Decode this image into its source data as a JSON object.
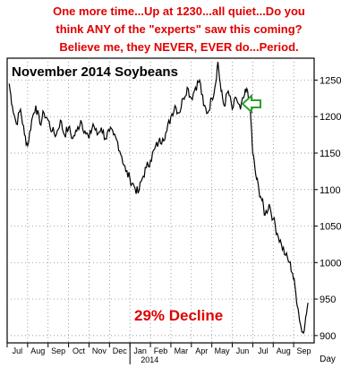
{
  "header": {
    "lines": [
      "One more time...Up at 1230...all quiet...Do you",
      "think ANY of the \"experts\" saw this coming?",
      "Believe me, they NEVER, EVER do...Period."
    ]
  },
  "colors": {
    "header_text": "#e00000",
    "price_line": "#000000",
    "arrow": "#2e9e2e",
    "decline_text": "#e00000",
    "grid": "#7a7a7a"
  },
  "chart_data": {
    "type": "line",
    "title": "November 2014 Soybeans",
    "annotation": "29% Decline",
    "arrow_icon": "left-arrow-icon",
    "ylim": [
      890,
      1280
    ],
    "yticks": [
      900,
      950,
      1000,
      1050,
      1100,
      1150,
      1200,
      1250
    ],
    "ylabel": "",
    "x_unit_label": "Day",
    "year_label": "2014",
    "months": [
      "Jul",
      "Aug",
      "Sep",
      "Oct",
      "Nov",
      "Dec",
      "Jan",
      "Feb",
      "Mar",
      "Apr",
      "May",
      "Jun",
      "Jul",
      "Aug",
      "Sep"
    ],
    "xlim": [
      0,
      15
    ],
    "grid": true,
    "series": [
      {
        "values": [
          [
            0.1,
            1245
          ],
          [
            0.25,
            1215
          ],
          [
            0.45,
            1190
          ],
          [
            0.65,
            1210
          ],
          [
            0.85,
            1175
          ],
          [
            1.0,
            1160
          ],
          [
            1.2,
            1195
          ],
          [
            1.4,
            1215
          ],
          [
            1.6,
            1190
          ],
          [
            1.8,
            1205
          ],
          [
            2.0,
            1195
          ],
          [
            2.2,
            1180
          ],
          [
            2.4,
            1175
          ],
          [
            2.6,
            1195
          ],
          [
            2.8,
            1175
          ],
          [
            3.0,
            1185
          ],
          [
            3.2,
            1170
          ],
          [
            3.4,
            1180
          ],
          [
            3.6,
            1195
          ],
          [
            3.8,
            1180
          ],
          [
            4.0,
            1170
          ],
          [
            4.2,
            1190
          ],
          [
            4.4,
            1175
          ],
          [
            4.6,
            1185
          ],
          [
            4.8,
            1170
          ],
          [
            5.0,
            1180
          ],
          [
            5.2,
            1175
          ],
          [
            5.4,
            1165
          ],
          [
            5.6,
            1145
          ],
          [
            5.8,
            1125
          ],
          [
            6.0,
            1115
          ],
          [
            6.2,
            1105
          ],
          [
            6.4,
            1095
          ],
          [
            6.6,
            1115
          ],
          [
            6.8,
            1130
          ],
          [
            7.0,
            1140
          ],
          [
            7.2,
            1155
          ],
          [
            7.4,
            1165
          ],
          [
            7.6,
            1170
          ],
          [
            7.8,
            1180
          ],
          [
            8.0,
            1200
          ],
          [
            8.2,
            1215
          ],
          [
            8.4,
            1205
          ],
          [
            8.6,
            1225
          ],
          [
            8.8,
            1240
          ],
          [
            9.0,
            1225
          ],
          [
            9.2,
            1240
          ],
          [
            9.4,
            1250
          ],
          [
            9.6,
            1215
          ],
          [
            9.8,
            1205
          ],
          [
            10.0,
            1225
          ],
          [
            10.15,
            1240
          ],
          [
            10.3,
            1275
          ],
          [
            10.45,
            1235
          ],
          [
            10.6,
            1215
          ],
          [
            10.8,
            1235
          ],
          [
            11.0,
            1210
          ],
          [
            11.2,
            1225
          ],
          [
            11.4,
            1210
          ],
          [
            11.6,
            1230
          ],
          [
            11.75,
            1235
          ],
          [
            11.9,
            1200
          ],
          [
            12.0,
            1150
          ],
          [
            12.15,
            1120
          ],
          [
            12.3,
            1100
          ],
          [
            12.45,
            1085
          ],
          [
            12.6,
            1065
          ],
          [
            12.8,
            1080
          ],
          [
            13.0,
            1060
          ],
          [
            13.2,
            1040
          ],
          [
            13.4,
            1025
          ],
          [
            13.6,
            1010
          ],
          [
            13.8,
            1000
          ],
          [
            13.95,
            985
          ],
          [
            14.1,
            960
          ],
          [
            14.25,
            930
          ],
          [
            14.4,
            905
          ],
          [
            14.55,
            915
          ],
          [
            14.7,
            945
          ]
        ]
      }
    ]
  }
}
